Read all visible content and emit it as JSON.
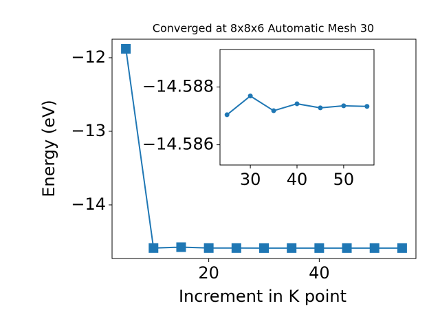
{
  "chart_data": [
    {
      "type": "line",
      "title": "Converged at 8x8x6 Automatic Mesh 30",
      "x_label": "Increment in K point",
      "y_label": "Energy (eV)",
      "x": [
        5,
        10,
        15,
        20,
        25,
        30,
        35,
        40,
        45,
        50,
        55
      ],
      "series": [
        {
          "color": "#1f77b4",
          "marker": "square",
          "values": [
            -11.879,
            -14.587,
            -14.575,
            -14.587,
            -14.58704,
            -14.58769,
            -14.58718,
            -14.58742,
            -14.58728,
            -14.58735,
            -14.58733
          ]
        }
      ],
      "xlim": [
        2.5,
        57.5
      ],
      "xticks": [
        20,
        40
      ],
      "ylim": [
        -14.729,
        -11.748
      ],
      "yticks": [
        {
          "value": -12,
          "label": "−12"
        },
        {
          "value": -13,
          "label": "−13"
        },
        {
          "value": -14,
          "label": "−14"
        }
      ]
    },
    {
      "type": "line",
      "x": [
        25,
        30,
        35,
        40,
        45,
        50,
        55
      ],
      "series": [
        {
          "color": "#1f77b4",
          "marker": "circle",
          "values": [
            -14.58704,
            -14.58769,
            -14.58718,
            -14.58742,
            -14.58728,
            -14.58735,
            -14.58733
          ]
        }
      ],
      "xlim": [
        23.5,
        56.5
      ],
      "xticks": [
        30,
        40,
        50
      ],
      "ylim": [
        -14.5853,
        -14.5893
      ],
      "yticks": [
        {
          "value": -14.588,
          "label": "−14.588"
        },
        {
          "value": -14.586,
          "label": "−14.586"
        }
      ]
    }
  ]
}
